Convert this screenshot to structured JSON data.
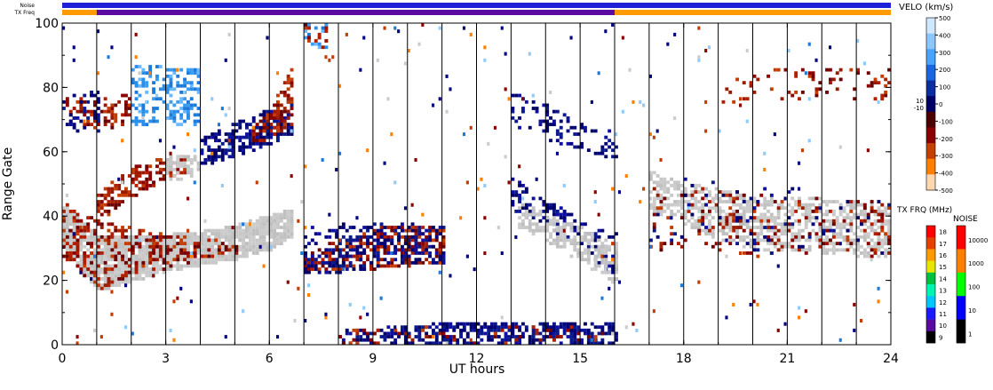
{
  "status_bars": {
    "noise_label": "Noise",
    "freq_label": "TX Freq",
    "noise_segments": [
      {
        "from": 0,
        "to": 16,
        "color": "#2020d8"
      },
      {
        "from": 16,
        "to": 24,
        "color": "#2020d8"
      }
    ],
    "freq_segments": [
      {
        "from": 0,
        "to": 1,
        "color": "#ff9a00"
      },
      {
        "from": 1,
        "to": 16,
        "color": "#5a0aa0"
      },
      {
        "from": 16,
        "to": 24,
        "color": "#ff9a00"
      }
    ]
  },
  "chart_data": {
    "type": "heatmap",
    "title": "",
    "xlabel": "UT hours",
    "ylabel": "Range Gate",
    "xlim": [
      0,
      24
    ],
    "ylim": [
      0,
      100
    ],
    "x_ticks": [
      0,
      3,
      6,
      9,
      12,
      15,
      18,
      21,
      24
    ],
    "y_ticks": [
      0,
      20,
      40,
      60,
      80,
      100
    ],
    "scan_boundaries": [
      1,
      2,
      3,
      4,
      5,
      6,
      7,
      8,
      9,
      10,
      11,
      12,
      13,
      14,
      15,
      16,
      17,
      18,
      19,
      20,
      21,
      22,
      23
    ],
    "bands": [
      {
        "kind": "gray",
        "t": [
          0,
          1.0,
          2.0,
          3.0,
          4.0,
          5.0,
          6.0,
          6.6
        ],
        "lo": [
          31,
          17,
          20,
          23,
          25,
          27,
          30,
          34
        ],
        "hi": [
          43,
          34,
          34,
          34,
          35,
          37,
          40,
          42
        ],
        "density": 0.9
      },
      {
        "kind": "red",
        "t": [
          0,
          1.0,
          2.0,
          3.0,
          4.0,
          5.0
        ],
        "lo": [
          27,
          17,
          22,
          24,
          27,
          29
        ],
        "hi": [
          44,
          38,
          36,
          34,
          33,
          33
        ],
        "density": 0.35
      },
      {
        "kind": "red",
        "t": [
          1.0,
          2.0,
          3.0,
          3.6
        ],
        "lo": [
          38,
          46,
          52,
          54
        ],
        "hi": [
          47,
          55,
          58,
          59
        ],
        "density": 0.5
      },
      {
        "kind": "gray",
        "t": [
          3.0,
          4.0
        ],
        "lo": [
          51,
          53
        ],
        "hi": [
          58,
          59
        ],
        "density": 0.6
      },
      {
        "kind": "blue",
        "t": [
          4.0,
          5.0,
          6.0,
          6.6
        ],
        "lo": [
          56,
          59,
          63,
          66
        ],
        "hi": [
          64,
          69,
          73,
          76
        ],
        "density": 0.55
      },
      {
        "kind": "red",
        "t": [
          5.5,
          6.0,
          6.6
        ],
        "lo": [
          62,
          65,
          69
        ],
        "hi": [
          68,
          73,
          86
        ],
        "density": 0.55
      },
      {
        "kind": "lblue",
        "t": [
          2.0,
          3.0,
          4.0
        ],
        "lo": [
          69,
          68,
          68
        ],
        "hi": [
          86,
          87,
          85
        ],
        "density": 0.45
      },
      {
        "kind": "red",
        "t": [
          0,
          1.0,
          2.0
        ],
        "lo": [
          70,
          67,
          69
        ],
        "hi": [
          77,
          76,
          78
        ],
        "density": 0.35
      },
      {
        "kind": "blue",
        "t": [
          0,
          1.0
        ],
        "lo": [
          67,
          66
        ],
        "hi": [
          79,
          78
        ],
        "density": 0.2
      },
      {
        "kind": "red",
        "t": [
          7.0,
          9.0,
          11.0
        ],
        "lo": [
          23,
          24,
          26
        ],
        "hi": [
          29,
          36,
          37
        ],
        "density": 0.45
      },
      {
        "kind": "blue",
        "t": [
          7.0,
          9.0,
          11.0
        ],
        "lo": [
          22,
          24,
          26
        ],
        "hi": [
          36,
          38,
          37
        ],
        "density": 0.35
      },
      {
        "kind": "blue",
        "t": [
          13.0,
          14.0,
          15.0,
          16.0
        ],
        "lo": [
          42,
          36,
          31,
          20
        ],
        "hi": [
          52,
          45,
          38,
          34
        ],
        "density": 0.35
      },
      {
        "kind": "gray",
        "t": [
          13.2,
          14.0,
          15.0,
          16.0
        ],
        "lo": [
          36,
          32,
          26,
          19
        ],
        "hi": [
          44,
          40,
          36,
          31
        ],
        "density": 0.55
      },
      {
        "kind": "blue",
        "t": [
          13.0,
          14.0,
          15.0,
          16.0
        ],
        "lo": [
          68,
          64,
          61,
          58
        ],
        "hi": [
          79,
          74,
          68,
          66
        ],
        "density": 0.3
      },
      {
        "kind": "gray",
        "t": [
          17.0,
          18.0,
          19.0,
          20.0,
          21.0,
          22.0,
          23.0,
          24.0
        ],
        "lo": [
          42,
          38,
          33,
          30,
          29,
          29,
          28,
          27
        ],
        "hi": [
          54,
          50,
          48,
          46,
          46,
          45,
          44,
          42
        ],
        "density": 0.5
      },
      {
        "kind": "red",
        "t": [
          17.0,
          19.0,
          21.0,
          24.0
        ],
        "lo": [
          30,
          28,
          27,
          27
        ],
        "hi": [
          50,
          48,
          46,
          44
        ],
        "density": 0.13
      },
      {
        "kind": "blue",
        "t": [
          17.0,
          24.0
        ],
        "lo": [
          30,
          28
        ],
        "hi": [
          52,
          46
        ],
        "density": 0.05
      },
      {
        "kind": "red",
        "t": [
          19.0,
          21.0,
          24.0
        ],
        "lo": [
          74,
          76,
          76
        ],
        "hi": [
          84,
          86,
          86
        ],
        "density": 0.12
      },
      {
        "kind": "blue",
        "t": [
          8.0,
          12.0,
          16.0
        ],
        "lo": [
          0,
          0,
          0
        ],
        "hi": [
          4,
          7,
          6
        ],
        "density": 0.55
      },
      {
        "kind": "red",
        "t": [
          8.0,
          12.0,
          16.0
        ],
        "lo": [
          0,
          0,
          0
        ],
        "hi": [
          4,
          6,
          5
        ],
        "density": 0.12
      },
      {
        "kind": "lblue",
        "t": [
          7.0,
          7.6
        ],
        "lo": [
          94,
          92
        ],
        "hi": [
          100,
          100
        ],
        "density": 0.35
      },
      {
        "kind": "red",
        "t": [
          7.0,
          7.6
        ],
        "lo": [
          94,
          92
        ],
        "hi": [
          100,
          100
        ],
        "density": 0.25
      }
    ],
    "scatter": {
      "density": 0.012,
      "x_range": [
        0,
        24
      ],
      "y_range": [
        0,
        100
      ]
    },
    "velocity_legend": {
      "title": "VELO (km/s)",
      "ticks": [
        "500",
        "400",
        "300",
        "200",
        "100",
        "0",
        "-100",
        "-200",
        "-300",
        "-400",
        "-500"
      ],
      "side_labels": [
        "10",
        "-10"
      ],
      "colors": [
        "#cfe8ff",
        "#8cc8ff",
        "#48a4ff",
        "#1a66e0",
        "#0a2ea0",
        "#000066",
        "#4d0000",
        "#8b0000",
        "#c44000",
        "#ff7f00",
        "#ffd8b0"
      ]
    },
    "freq_legend": {
      "title": "TX FRQ (MHz)",
      "ticks": [
        "18",
        "17",
        "16",
        "15",
        "14",
        "13",
        "12",
        "11",
        "10",
        "9"
      ],
      "colors": [
        "#ff0000",
        "#e64000",
        "#ff9a00",
        "#e6e600",
        "#00c040",
        "#00f5b0",
        "#00c8ff",
        "#1a1aff",
        "#5a0aa0",
        "#000000"
      ]
    },
    "noise_legend": {
      "title": "NOISE",
      "ticks": [
        "10000",
        "1000",
        "100",
        "10",
        "1"
      ],
      "colors": [
        "#ff0000",
        "#ff8000",
        "#00ff00",
        "#0000ff",
        "#000000"
      ]
    },
    "kind_colors": {
      "gray": [
        "#c8c8c8",
        "#c0c0c0",
        "#cccccc"
      ],
      "red": [
        "#8b0000",
        "#9a1a00",
        "#6b0000",
        "#b02000",
        "#c43c00"
      ],
      "blue": [
        "#00007a",
        "#0a1a8a",
        "#000066",
        "#1010a0"
      ],
      "lblue": [
        "#3c9cf0",
        "#1e7ad8",
        "#6ab8ff",
        "#2a8ee8"
      ],
      "scatter": [
        "#000080",
        "#8b0000",
        "#cccccc",
        "#8ecbff",
        "#1e7ad8",
        "#c43c00",
        "#ff7f00",
        "#00007a"
      ]
    }
  }
}
